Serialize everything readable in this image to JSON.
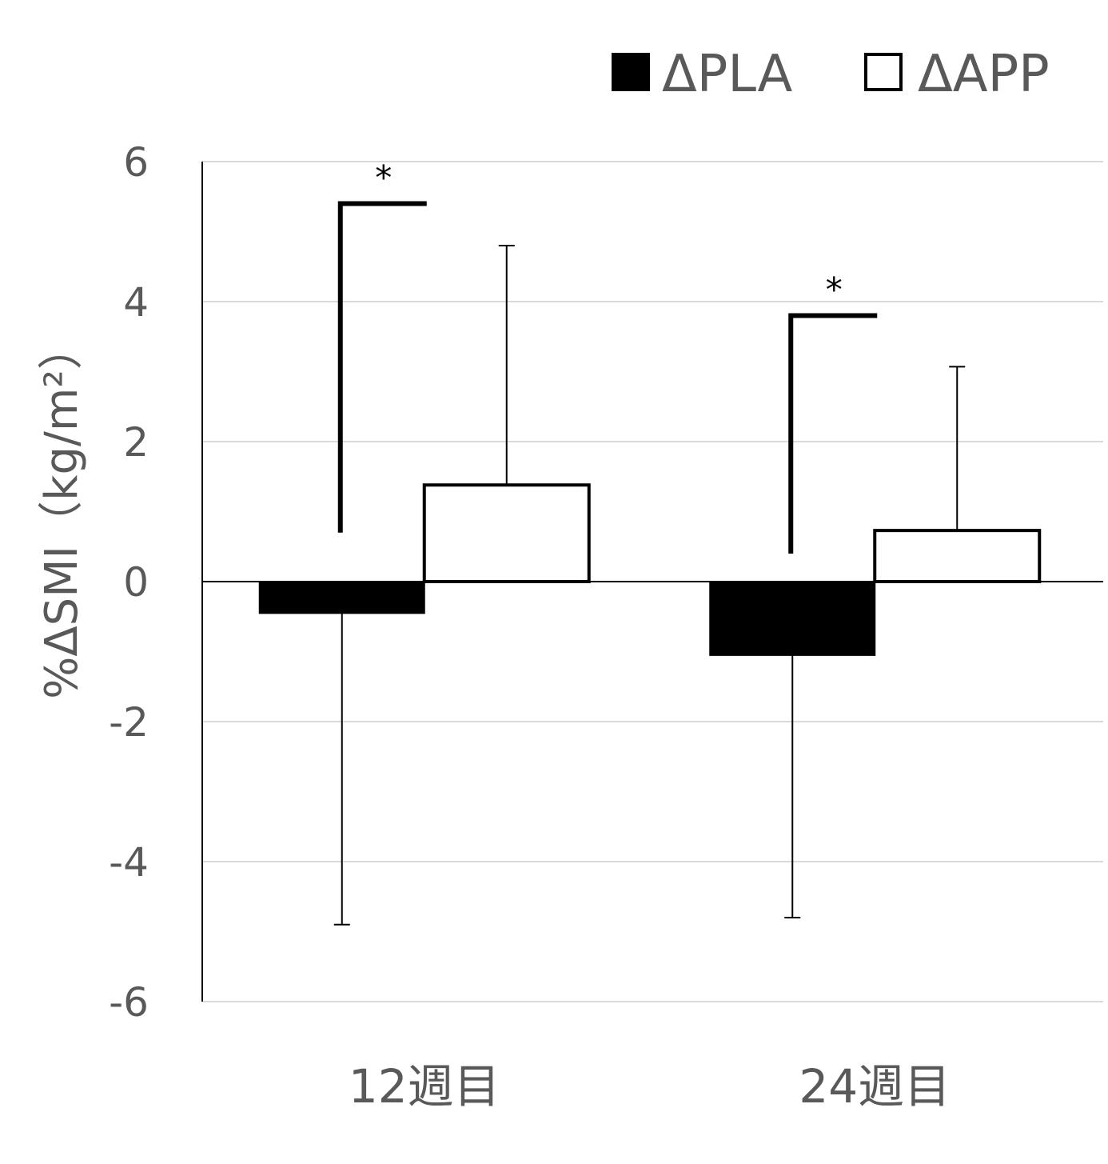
{
  "chart_data": {
    "type": "bar",
    "title": "",
    "xlabel": "",
    "ylabel": "%ΔSMI（kg/m²）",
    "categories": [
      "12週目",
      "24週目"
    ],
    "series": [
      {
        "name": "ΔPLA",
        "values": [
          -0.45,
          -1.05
        ],
        "error_lower": [
          4.45,
          3.75
        ],
        "error_upper": [
          0,
          0
        ],
        "color": "#000000"
      },
      {
        "name": "ΔAPP",
        "values": [
          1.38,
          0.73
        ],
        "error_lower": [
          0,
          0
        ],
        "error_upper": [
          3.42,
          2.34
        ],
        "color": "#ffffff"
      }
    ],
    "ylim": [
      -6,
      6
    ],
    "yticks": [
      6,
      4,
      2,
      0,
      -2,
      -4,
      -6
    ],
    "grid": true,
    "legend_position": "top-right",
    "annotations": [
      {
        "text": "*",
        "category": "12週目",
        "bracket_top": 5.4,
        "left_end": 0.7
      },
      {
        "text": "*",
        "category": "24週目",
        "bracket_top": 3.8,
        "left_end": 0.4
      }
    ]
  }
}
